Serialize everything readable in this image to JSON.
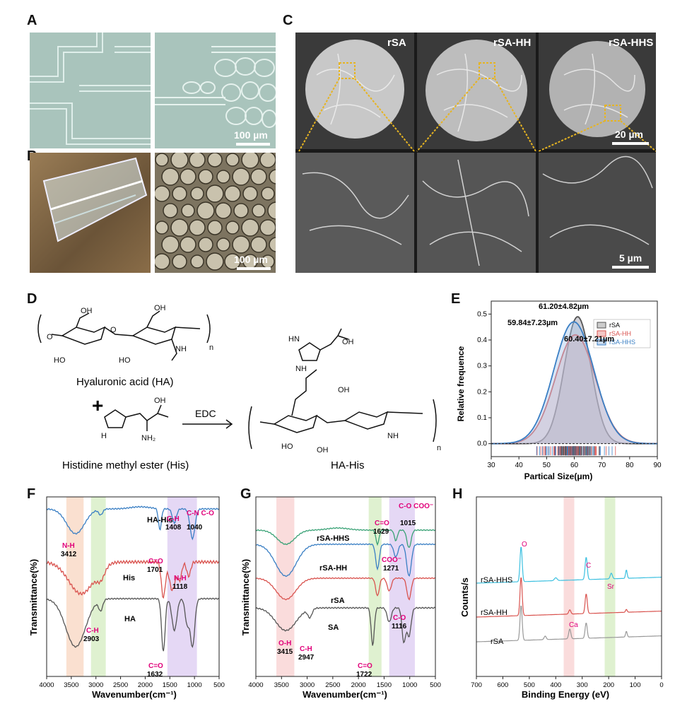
{
  "panels": {
    "A": {
      "label": "A",
      "scale_bar": "100 µm"
    },
    "B": {
      "label": "B",
      "scale_bar": "100 µm"
    },
    "C": {
      "label": "C",
      "titles": [
        "rSA",
        "rSA-HH",
        "rSA-HHS"
      ],
      "scale_bar_top": "20 µm",
      "scale_bar_bottom": "5 µm"
    },
    "D": {
      "label": "D",
      "ha_name": "Hyaluronic acid (HA)",
      "his_name": "Histidine methyl ester (His)",
      "product_name": "HA-His",
      "reagent": "EDC",
      "plus": "+",
      "atoms": {
        "oh": "OH",
        "ho": "HO",
        "o": "O",
        "nh": "NH",
        "hn": "HN",
        "n": "N",
        "h": "H",
        "nh2": "NH₂",
        "n_sub": "n"
      }
    },
    "E": {
      "label": "E",
      "annotations": [
        "61.20±4.82µm",
        "59.84±7.23µm",
        "60.40±7.21µm"
      ]
    },
    "F": {
      "label": "F"
    },
    "G": {
      "label": "G"
    },
    "H": {
      "label": "H"
    }
  },
  "colors": {
    "accent_pink": "#e0007a",
    "red": "#d9534f",
    "blue": "#3a7fc4",
    "gray": "#555555",
    "green": "#3aa276",
    "cyan": "#3cc0e0"
  },
  "chart_data": [
    {
      "id": "E",
      "type": "area",
      "title": "",
      "xlabel": "Partical Size(μm)",
      "ylabel": "Relative frequence",
      "xlim": [
        30,
        90
      ],
      "ylim": [
        -0.05,
        0.55
      ],
      "xticks": [
        30,
        40,
        50,
        60,
        70,
        80,
        90
      ],
      "yticks": [
        0.0,
        0.1,
        0.2,
        0.3,
        0.4,
        0.5
      ],
      "legend": {
        "placement": "top-right",
        "entries": [
          "rSA",
          "rSA-HH",
          "rSA-HHS"
        ]
      },
      "series": [
        {
          "name": "rSA",
          "mean": 61.2,
          "sd": 4.82,
          "peak": 0.49,
          "color": "#555555"
        },
        {
          "name": "rSA-HH",
          "mean": 60.4,
          "sd": 7.21,
          "peak": 0.42,
          "color": "#d9534f"
        },
        {
          "name": "rSA-HHS",
          "mean": 59.84,
          "sd": 7.23,
          "peak": 0.47,
          "color": "#3a7fc4"
        }
      ]
    },
    {
      "id": "F",
      "type": "line",
      "xlabel": "Wavenumber(cm⁻¹)",
      "ylabel": "Transmittance(%)",
      "xlim": [
        4000,
        500
      ],
      "xticks": [
        4000,
        3500,
        3000,
        2500,
        2000,
        1500,
        1000,
        500
      ],
      "series": [
        {
          "name": "HA-His",
          "color": "#3a7fc4"
        },
        {
          "name": "His",
          "color": "#d9534f"
        },
        {
          "name": "HA",
          "color": "#555555"
        }
      ],
      "bands": [
        {
          "from": 3600,
          "to": 3250,
          "color": "#f8d5c0"
        },
        {
          "from": 3100,
          "to": 2800,
          "color": "#d4ecc0"
        },
        {
          "from": 1550,
          "to": 950,
          "color": "#dccbf2"
        }
      ],
      "peak_labels": [
        {
          "group": "N-H",
          "wavenumber": "3412"
        },
        {
          "group": "C-H",
          "wavenumber": "2903"
        },
        {
          "group": "C=O",
          "wavenumber": "1701"
        },
        {
          "group": "C-H",
          "wavenumber": "1408"
        },
        {
          "group": "C-N C-O",
          "wavenumber": "1040"
        },
        {
          "group": "N-H",
          "wavenumber": "1118"
        },
        {
          "group": "C=O",
          "wavenumber": "1632"
        }
      ]
    },
    {
      "id": "G",
      "type": "line",
      "xlabel": "Wavenumber(cm⁻¹)",
      "ylabel": "Transmittance(%)",
      "xlim": [
        4000,
        500
      ],
      "xticks": [
        4000,
        3500,
        3000,
        2500,
        2000,
        1500,
        1000,
        500
      ],
      "series": [
        {
          "name": "rSA-HHS",
          "color": "#3aa276"
        },
        {
          "name": "rSA-HH",
          "color": "#3a7fc4"
        },
        {
          "name": "rSA",
          "color": "#d9534f"
        },
        {
          "name": "SA",
          "color": "#555555"
        }
      ],
      "bands": [
        {
          "from": 3600,
          "to": 3250,
          "color": "#f8d0d0"
        },
        {
          "from": 1800,
          "to": 1550,
          "color": "#d4ecc0"
        },
        {
          "from": 1400,
          "to": 900,
          "color": "#dccbf2"
        }
      ],
      "peak_labels": [
        {
          "group": "C=O",
          "wavenumber": "1629"
        },
        {
          "group": "C-O COO⁻",
          "wavenumber": "1015"
        },
        {
          "group": "COO⁻",
          "wavenumber": "1271"
        },
        {
          "group": "C-O",
          "wavenumber": "1116"
        },
        {
          "group": "O-H",
          "wavenumber": "3415"
        },
        {
          "group": "C-H",
          "wavenumber": "2947"
        },
        {
          "group": "C=O",
          "wavenumber": "1722"
        }
      ]
    },
    {
      "id": "H",
      "type": "line",
      "xlabel": "Binding Energy (eV)",
      "ylabel": "Counts/s",
      "xlim": [
        700,
        0
      ],
      "xticks": [
        700,
        600,
        500,
        400,
        300,
        200,
        100,
        0
      ],
      "series": [
        {
          "name": "rSA-HHS",
          "color": "#3cc0e0"
        },
        {
          "name": "rSA-HH",
          "color": "#d9534f"
        },
        {
          "name": "rSA",
          "color": "#999999"
        }
      ],
      "bands": [
        {
          "from": 370,
          "to": 330,
          "color": "#f8d0d0"
        },
        {
          "from": 215,
          "to": 175,
          "color": "#d4ecc0"
        }
      ],
      "element_labels": [
        {
          "element": "O",
          "energy": 531
        },
        {
          "element": "C",
          "energy": 285
        },
        {
          "element": "Sr",
          "energy": 190
        },
        {
          "element": "Ca",
          "energy": 347
        }
      ]
    }
  ]
}
